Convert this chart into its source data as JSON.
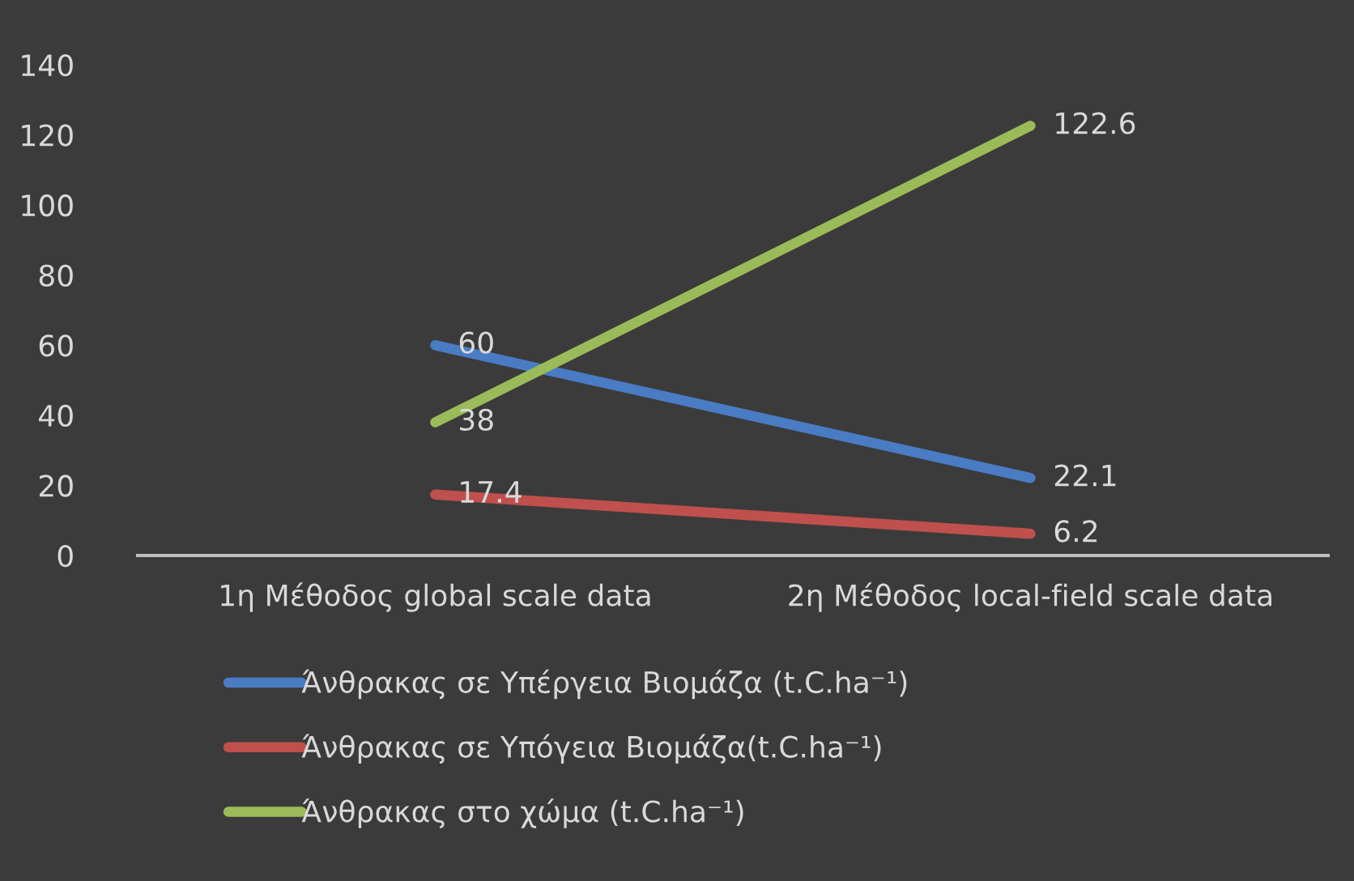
{
  "chart_data": {
    "type": "line",
    "categories": [
      "1η Μέθοδος global scale data",
      "2η Μέθοδος local-field scale data"
    ],
    "series": [
      {
        "name": "Άνθρακας σε Υπέργεια Βιομάζα (t.C.ha⁻¹)",
        "color": "#4a7cc4",
        "values": [
          60,
          22.1
        ]
      },
      {
        "name": "Άνθρακας σε Υπόγεια Βιομάζα(t.C.ha⁻¹)",
        "color": "#c0504d",
        "values": [
          17.4,
          6.2
        ]
      },
      {
        "name": "Άνθρακας στο χώμα (t.C.ha⁻¹)",
        "color": "#9bbb59",
        "values": [
          38,
          122.6
        ]
      }
    ],
    "ylim": [
      0,
      140
    ],
    "yticks": [
      0,
      20,
      40,
      60,
      80,
      100,
      120,
      140
    ],
    "data_labels": true,
    "grid": false,
    "legend": "bottom",
    "marker": "none",
    "line_style": "solid"
  }
}
